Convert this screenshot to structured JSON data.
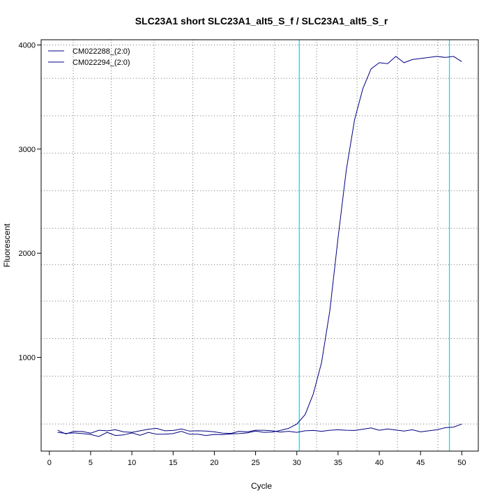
{
  "chart_data": {
    "type": "line",
    "title": "SLC23A1 short SLC23A1_alt5_S_f / SLC23A1_alt5_S_r",
    "xlabel": "Cycle",
    "ylabel": "Fluorescent",
    "xlim": [
      -1,
      52
    ],
    "ylim": [
      100,
      4050
    ],
    "x_ticks": [
      0,
      5,
      10,
      15,
      20,
      25,
      30,
      35,
      40,
      45,
      50
    ],
    "x_tick_labels": [
      "0",
      "5",
      "10",
      "15",
      "20",
      "25",
      "30",
      "35",
      "40",
      "45",
      "50"
    ],
    "y_ticks": [
      1000,
      2000,
      3000,
      4000
    ],
    "y_tick_labels": [
      "1000",
      "2000",
      "3000",
      "4000"
    ],
    "grid": true,
    "vertical_grid": [
      2.9,
      7.5,
      12.7,
      17.4,
      22.4,
      27.3,
      32.4,
      37.3,
      42.2,
      47.1
    ],
    "horizontal_grid": [
      360,
      820,
      1180,
      1540,
      1890,
      2240,
      2600,
      2960,
      3320,
      3680,
      4000
    ],
    "threshold_lines": [
      30.3,
      48.5
    ],
    "threshold_color": "#00e0ff",
    "legend_position": "top-left",
    "series": [
      {
        "name": "CM022288_(2:0)",
        "color": "#000080",
        "x": [
          1,
          2,
          3,
          4,
          5,
          6,
          7,
          8,
          9,
          10,
          11,
          12,
          13,
          14,
          15,
          16,
          17,
          18,
          19,
          20,
          21,
          22,
          23,
          24,
          25,
          26,
          27,
          28,
          29,
          30,
          31,
          32,
          33,
          34,
          35,
          36,
          37,
          38,
          39,
          40,
          41,
          42,
          43,
          44,
          45,
          46,
          47,
          48,
          49,
          50
        ],
        "values": [
          300,
          265,
          290,
          288,
          272,
          300,
          295,
          305,
          285,
          280,
          295,
          310,
          318,
          295,
          298,
          312,
          292,
          295,
          293,
          285,
          272,
          270,
          290,
          285,
          300,
          300,
          295,
          282,
          290,
          280,
          295,
          298,
          290,
          300,
          305,
          300,
          298,
          310,
          322,
          300,
          312,
          302,
          292,
          305,
          285,
          295,
          305,
          325,
          330,
          360
        ]
      },
      {
        "name": "CM022294_(2:0)",
        "color": "#000080",
        "x": [
          1,
          2,
          3,
          4,
          5,
          6,
          7,
          8,
          9,
          10,
          11,
          12,
          13,
          14,
          15,
          16,
          17,
          18,
          19,
          20,
          21,
          22,
          23,
          24,
          25,
          26,
          27,
          28,
          29,
          30,
          31,
          32,
          33,
          34,
          35,
          36,
          37,
          38,
          39,
          40,
          41,
          42,
          43,
          44,
          45,
          46,
          47,
          48,
          49,
          50
        ],
        "values": [
          280,
          270,
          275,
          268,
          260,
          240,
          280,
          250,
          255,
          275,
          252,
          280,
          262,
          262,
          268,
          290,
          262,
          262,
          250,
          260,
          258,
          265,
          268,
          275,
          292,
          280,
          282,
          298,
          318,
          360,
          450,
          650,
          950,
          1450,
          2150,
          2800,
          3280,
          3580,
          3770,
          3830,
          3820,
          3890,
          3830,
          3860,
          3870,
          3880,
          3890,
          3880,
          3890,
          3840
        ]
      }
    ]
  }
}
